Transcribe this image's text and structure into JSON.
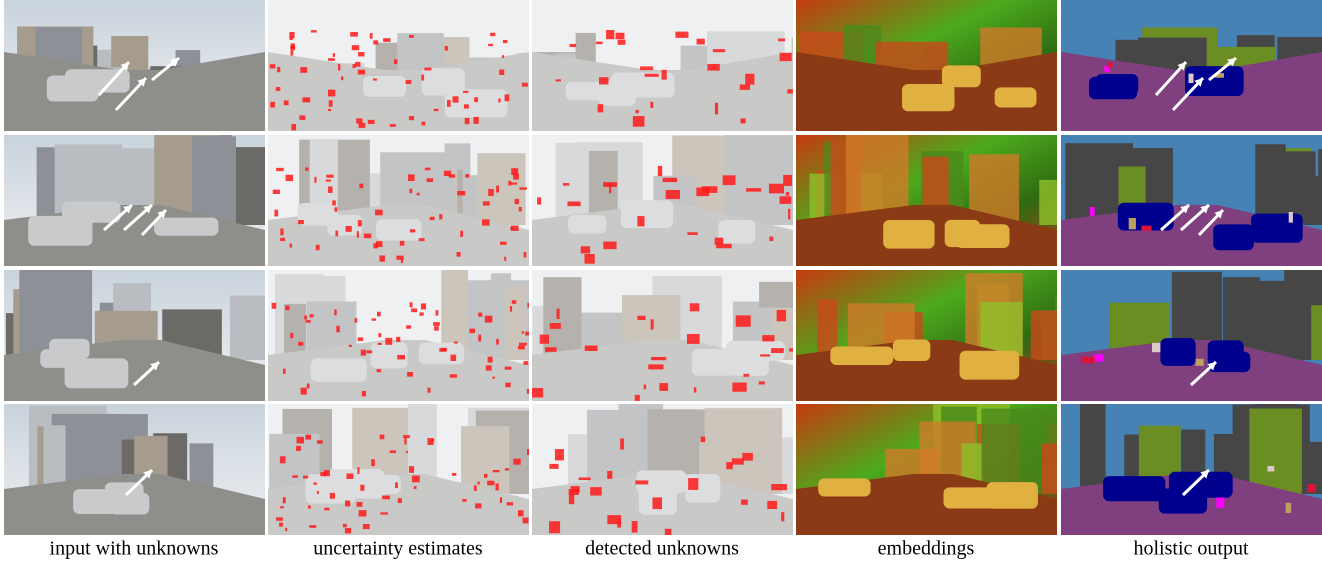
{
  "captions": [
    "input with unknowns",
    "uncertainty estimates",
    "detected unknowns",
    "embeddings",
    "holistic output"
  ]
}
